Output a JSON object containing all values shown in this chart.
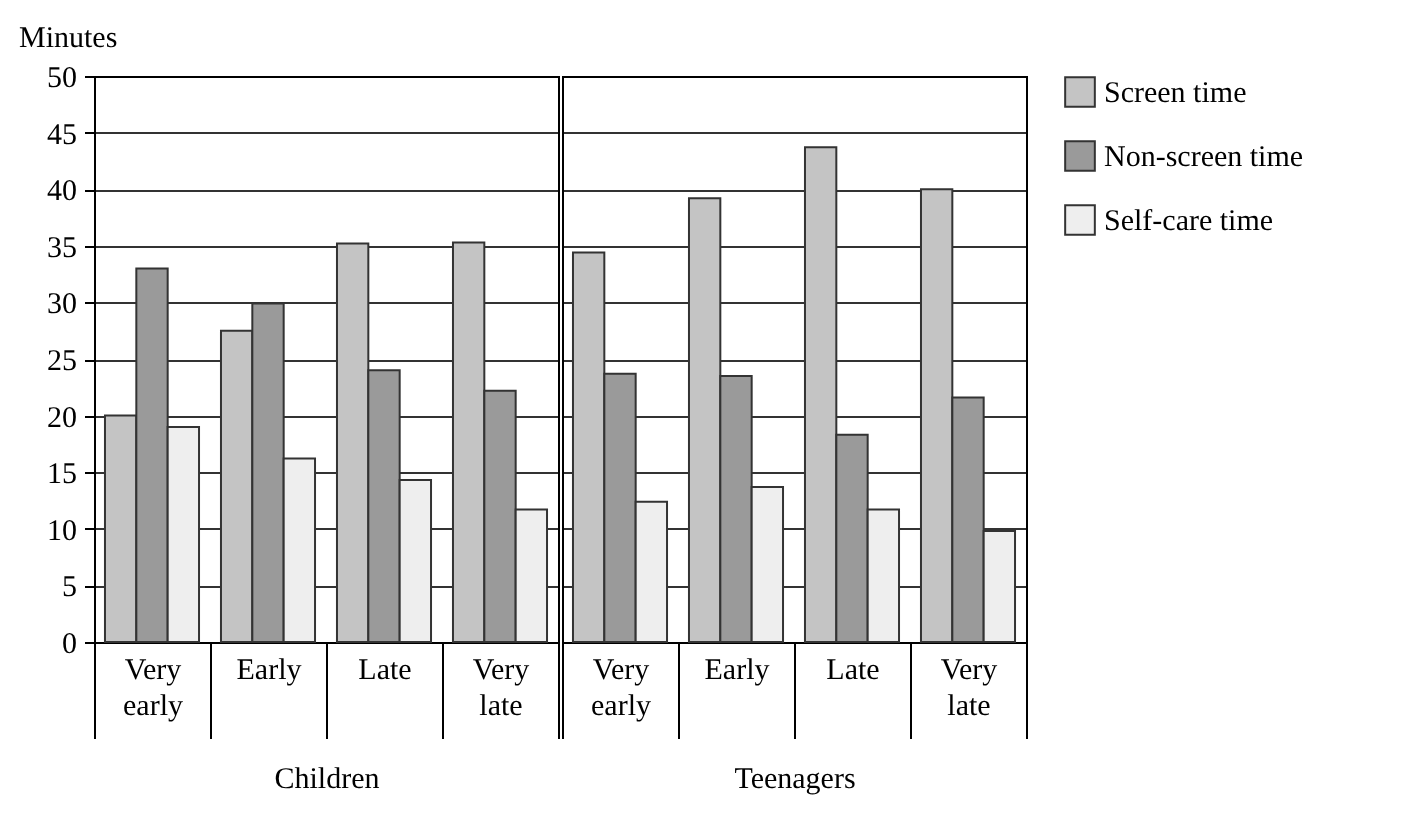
{
  "chart_data": [
    {
      "type": "bar",
      "ylabel": "Minutes",
      "xlabel": "Children",
      "categories": [
        "Very early",
        "Early",
        "Late",
        "Very late"
      ],
      "ylim": [
        0,
        50
      ],
      "yticks": [
        0,
        5,
        10,
        15,
        20,
        25,
        30,
        35,
        40,
        45,
        50
      ],
      "grid": "y",
      "legend": "right",
      "series": [
        {
          "name": "Screen time",
          "color": "#c4c4c4",
          "values": [
            20,
            27.5,
            35.2,
            35.3
          ]
        },
        {
          "name": "Non-screen time",
          "color": "#9a9a9a",
          "values": [
            33,
            29.9,
            24,
            22.2
          ]
        },
        {
          "name": "Self-care time",
          "color": "#eeeeee",
          "values": [
            19,
            16.2,
            14.3,
            11.7
          ]
        }
      ]
    },
    {
      "type": "bar",
      "xlabel": "Teenagers",
      "categories": [
        "Very early",
        "Early",
        "Late",
        "Very late"
      ],
      "ylim": [
        0,
        50
      ],
      "yticks": [
        0,
        5,
        10,
        15,
        20,
        25,
        30,
        35,
        40,
        45,
        50
      ],
      "grid": "y",
      "legend": "right",
      "tick_labels": "x",
      "series": [
        {
          "name": "Screen time",
          "color": "#c4c4c4",
          "values": [
            34.4,
            39.2,
            43.7,
            40
          ]
        },
        {
          "name": "Non-screen time",
          "color": "#9a9a9a",
          "values": [
            23.7,
            23.5,
            18.3,
            21.6
          ]
        },
        {
          "name": "Self-care time",
          "color": "#eeeeee",
          "values": [
            12.4,
            13.7,
            11.7,
            9.8
          ]
        }
      ]
    }
  ]
}
